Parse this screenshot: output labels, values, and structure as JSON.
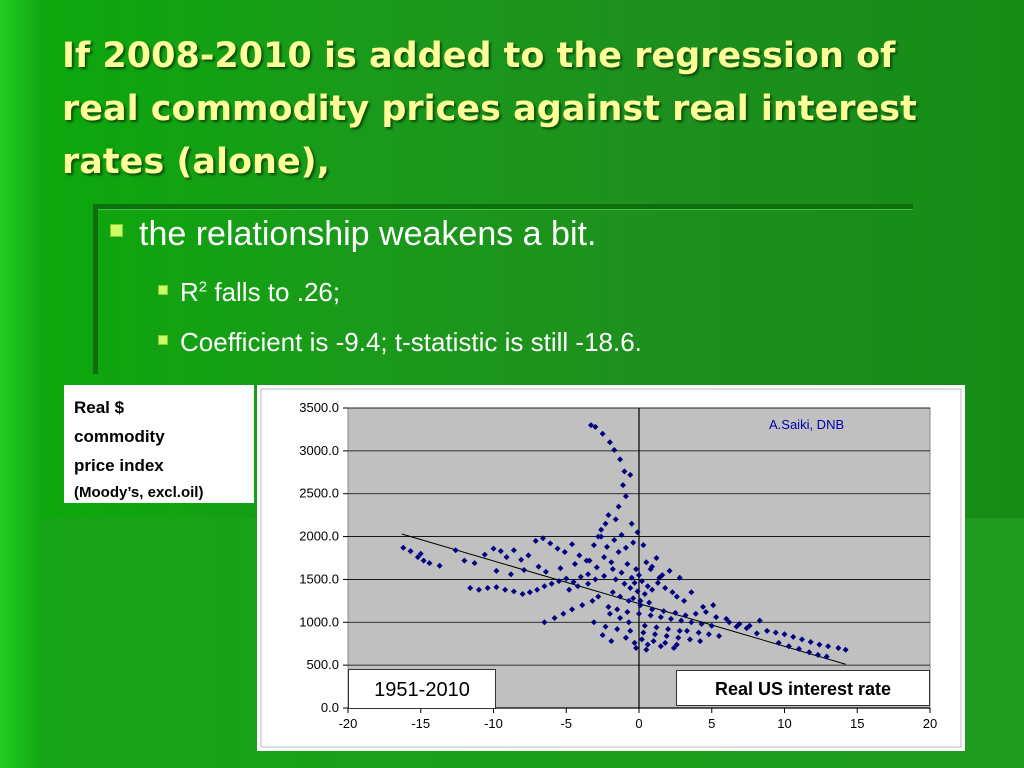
{
  "slide": {
    "title_main": "If 2008-2010 is added to the regression of real commodity prices against real interest rates",
    "title_paren": "(alone),",
    "bullets": {
      "b1": "the relationship weakens a bit.",
      "b2_R": "R",
      "b2_sup": "2",
      "b2_rest": " falls to .26;",
      "b3": "Coefficient is -9.4;  t-statistic is still -18.6."
    },
    "accent_color": "#ffff99",
    "bullet_color": "#ccff66"
  },
  "chart_data": {
    "type": "scatter",
    "title": "",
    "ylabel_lines": [
      "Real $",
      "commodity",
      "price index",
      "(Moody’s, excl.oil)"
    ],
    "xlabel": "Real US interest rate",
    "period_label": "1951-2010",
    "credit": "A.Saiki, DNB",
    "xlim": [
      -20,
      20
    ],
    "ylim": [
      0,
      3500
    ],
    "x_ticks": [
      "-20",
      "-15",
      "-10",
      "-5",
      "0",
      "5",
      "10",
      "15",
      "20"
    ],
    "y_ticks": [
      "0.0",
      "500.0",
      "1000.0",
      "1500.0",
      "2000.0",
      "2500.0",
      "3000.0",
      "3500.0"
    ],
    "grid": "horizontal",
    "marker_color": "#000080",
    "plot_bg": "#c0c0c0",
    "trendline": {
      "x": [
        -16.3,
        14.2
      ],
      "y": [
        2030,
        510
      ]
    },
    "series": [
      {
        "points": [
          [
            -16.2,
            1870
          ],
          [
            -15.7,
            1830
          ],
          [
            -15.2,
            1760
          ],
          [
            -14.8,
            1720
          ],
          [
            -14.4,
            1690
          ],
          [
            -13.7,
            1660
          ],
          [
            -15.0,
            1800
          ],
          [
            -12.6,
            1840
          ],
          [
            -12.0,
            1720
          ],
          [
            -11.3,
            1690
          ],
          [
            -10.6,
            1790
          ],
          [
            -10.0,
            1860
          ],
          [
            -9.5,
            1830
          ],
          [
            -9.1,
            1760
          ],
          [
            -8.6,
            1840
          ],
          [
            -8.1,
            1730
          ],
          [
            -7.6,
            1780
          ],
          [
            -7.1,
            1950
          ],
          [
            -6.6,
            1980
          ],
          [
            -6.1,
            1920
          ],
          [
            -5.6,
            1860
          ],
          [
            -5.1,
            1820
          ],
          [
            -4.6,
            1910
          ],
          [
            -4.1,
            1780
          ],
          [
            -3.6,
            1720
          ],
          [
            -3.1,
            1900
          ],
          [
            -2.6,
            2000
          ],
          [
            -2.2,
            1880
          ],
          [
            -11.6,
            1400
          ],
          [
            -11.0,
            1380
          ],
          [
            -10.4,
            1400
          ],
          [
            -9.8,
            1410
          ],
          [
            -9.2,
            1380
          ],
          [
            -8.6,
            1360
          ],
          [
            -8.0,
            1330
          ],
          [
            -7.5,
            1350
          ],
          [
            -7.0,
            1380
          ],
          [
            -6.5,
            1420
          ],
          [
            -6.0,
            1450
          ],
          [
            -5.5,
            1480
          ],
          [
            -5.0,
            1510
          ],
          [
            -4.5,
            1470
          ],
          [
            -4.0,
            1530
          ],
          [
            -3.5,
            1560
          ],
          [
            -3.0,
            1500
          ],
          [
            -9.8,
            1600
          ],
          [
            -8.8,
            1560
          ],
          [
            -7.9,
            1610
          ],
          [
            -6.9,
            1650
          ],
          [
            -6.4,
            1590
          ],
          [
            -5.4,
            1630
          ],
          [
            -4.4,
            1680
          ],
          [
            -3.4,
            1720
          ],
          [
            -2.9,
            1640
          ],
          [
            -2.4,
            1760
          ],
          [
            -1.9,
            1700
          ],
          [
            -1.4,
            1820
          ],
          [
            -0.9,
            1870
          ],
          [
            -0.4,
            1930
          ],
          [
            -1.7,
            1960
          ],
          [
            -1.2,
            2020
          ],
          [
            -3.3,
            3300
          ],
          [
            -3.0,
            3280
          ],
          [
            -2.5,
            3200
          ],
          [
            -2.0,
            3100
          ],
          [
            -1.7,
            3010
          ],
          [
            -1.3,
            2900
          ],
          [
            -1.0,
            2760
          ],
          [
            -0.6,
            2720
          ],
          [
            -1.1,
            2600
          ],
          [
            -0.9,
            2470
          ],
          [
            -1.4,
            2350
          ],
          [
            -1.6,
            2200
          ],
          [
            -2.1,
            2250
          ],
          [
            -2.3,
            2150
          ],
          [
            -2.6,
            2080
          ],
          [
            -2.8,
            2000
          ],
          [
            -0.3,
            1460
          ],
          [
            0.2,
            1480
          ],
          [
            0.6,
            1420
          ],
          [
            -0.6,
            1400
          ],
          [
            -1.0,
            1450
          ],
          [
            -1.6,
            1500
          ],
          [
            0.9,
            1380
          ],
          [
            0.4,
            1330
          ],
          [
            -0.1,
            1360
          ],
          [
            1.3,
            1460
          ],
          [
            1.8,
            1400
          ],
          [
            2.3,
            1350
          ],
          [
            -0.4,
            1280
          ],
          [
            0.1,
            1250
          ],
          [
            0.7,
            1230
          ],
          [
            -2.1,
            1180
          ],
          [
            -1.5,
            1150
          ],
          [
            -0.8,
            1120
          ],
          [
            0.0,
            1100
          ],
          [
            0.8,
            1080
          ],
          [
            1.5,
            1060
          ],
          [
            2.2,
            1040
          ],
          [
            2.9,
            1020
          ],
          [
            3.6,
            1000
          ],
          [
            4.3,
            980
          ],
          [
            5.0,
            960
          ],
          [
            -3.1,
            1000
          ],
          [
            -2.3,
            950
          ],
          [
            -1.5,
            920
          ],
          [
            -0.6,
            900
          ],
          [
            0.3,
            880
          ],
          [
            1.1,
            860
          ],
          [
            1.9,
            840
          ],
          [
            2.7,
            820
          ],
          [
            3.5,
            800
          ],
          [
            4.2,
            780
          ],
          [
            -0.3,
            760
          ],
          [
            0.6,
            740
          ],
          [
            1.5,
            720
          ],
          [
            2.4,
            700
          ],
          [
            -0.9,
            820
          ],
          [
            0.2,
            800
          ],
          [
            1.0,
            780
          ],
          [
            1.8,
            760
          ],
          [
            2.6,
            740
          ],
          [
            3.3,
            900
          ],
          [
            4.1,
            880
          ],
          [
            4.8,
            860
          ],
          [
            5.5,
            840
          ],
          [
            6.2,
            1000
          ],
          [
            6.9,
            980
          ],
          [
            7.6,
            960
          ],
          [
            8.3,
            1020
          ],
          [
            3.9,
            1100
          ],
          [
            4.6,
            1120
          ],
          [
            5.3,
            1060
          ],
          [
            6.0,
            1040
          ],
          [
            4.4,
            1180
          ],
          [
            5.1,
            1200
          ],
          [
            3.1,
            1250
          ],
          [
            2.6,
            1300
          ],
          [
            3.6,
            1350
          ],
          [
            1.6,
            1550
          ],
          [
            2.1,
            1600
          ],
          [
            2.8,
            1520
          ],
          [
            0.9,
            1650
          ],
          [
            0.5,
            1700
          ],
          [
            1.2,
            1750
          ],
          [
            0.0,
            1550
          ],
          [
            -0.5,
            1520
          ],
          [
            -1.2,
            1580
          ],
          [
            -1.8,
            1620
          ],
          [
            -2.4,
            1540
          ],
          [
            -3.5,
            1450
          ],
          [
            -4.2,
            1420
          ],
          [
            -4.8,
            1380
          ],
          [
            -2.8,
            1300
          ],
          [
            -3.2,
            1250
          ],
          [
            -3.9,
            1200
          ],
          [
            -4.6,
            1150
          ],
          [
            -5.2,
            1100
          ],
          [
            -5.8,
            1050
          ],
          [
            -6.5,
            1000
          ],
          [
            -2.0,
            1100
          ],
          [
            -1.3,
            1050
          ],
          [
            -0.7,
            1000
          ],
          [
            0.4,
            960
          ],
          [
            1.2,
            940
          ],
          [
            2.0,
            920
          ],
          [
            2.8,
            900
          ],
          [
            8.8,
            900
          ],
          [
            9.4,
            880
          ],
          [
            10.0,
            860
          ],
          [
            10.6,
            830
          ],
          [
            11.2,
            800
          ],
          [
            11.8,
            770
          ],
          [
            12.4,
            740
          ],
          [
            13.0,
            720
          ],
          [
            13.7,
            700
          ],
          [
            14.2,
            680
          ],
          [
            9.6,
            760
          ],
          [
            10.3,
            720
          ],
          [
            11.0,
            690
          ],
          [
            11.7,
            650
          ],
          [
            12.3,
            620
          ],
          [
            12.9,
            600
          ],
          [
            8.1,
            870
          ],
          [
            7.4,
            930
          ],
          [
            6.7,
            950
          ],
          [
            0.8,
            1620
          ],
          [
            1.4,
            1520
          ],
          [
            -0.2,
            1620
          ],
          [
            -0.8,
            1680
          ],
          [
            0.3,
            1900
          ],
          [
            -0.1,
            2050
          ],
          [
            -0.5,
            2150
          ],
          [
            -1.8,
            1350
          ],
          [
            -1.3,
            1300
          ],
          [
            -0.7,
            1250
          ],
          [
            0.1,
            1200
          ],
          [
            0.9,
            1150
          ],
          [
            1.7,
            1130
          ],
          [
            2.5,
            1110
          ],
          [
            3.2,
            1080
          ],
          [
            -2.5,
            850
          ],
          [
            -1.9,
            780
          ],
          [
            -0.2,
            700
          ],
          [
            0.5,
            680
          ]
        ]
      }
    ]
  }
}
